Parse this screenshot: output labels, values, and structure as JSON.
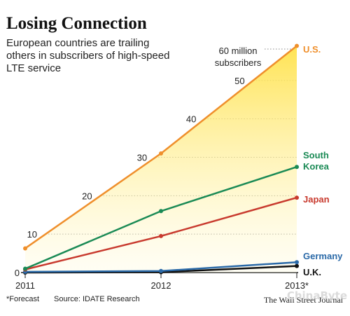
{
  "chart_data": {
    "type": "line",
    "title": "Losing Connection",
    "subtitle": "European countries are trailing others in subscribers of high-speed LTE service",
    "unit_label": "60 million subscribers",
    "x": [
      "2011",
      "2012",
      "2013*"
    ],
    "ylim": [
      0,
      60
    ],
    "yticks": [
      0,
      10,
      20,
      30,
      40,
      50
    ],
    "grid": "dotted",
    "series": [
      {
        "name": "U.S.",
        "values": [
          6.3,
          31,
          59
        ],
        "color": "#ef8f2c",
        "fill": true
      },
      {
        "name": "South Korea",
        "values": [
          1,
          16,
          27.5
        ],
        "color": "#1a8a55"
      },
      {
        "name": "Japan",
        "values": [
          0.8,
          9.5,
          19.5
        ],
        "color": "#c83a2e"
      },
      {
        "name": "Germany",
        "values": [
          0.2,
          0.4,
          2.7
        ],
        "color": "#2b6aa8"
      },
      {
        "name": "U.K.",
        "values": [
          0,
          0.1,
          1.7
        ],
        "color": "#111111"
      }
    ]
  },
  "footer": {
    "forecast_note": "*Forecast",
    "source": "Source: IDATE Research",
    "credit": "The Wall Street Journal"
  },
  "watermark": "ChinaByte"
}
